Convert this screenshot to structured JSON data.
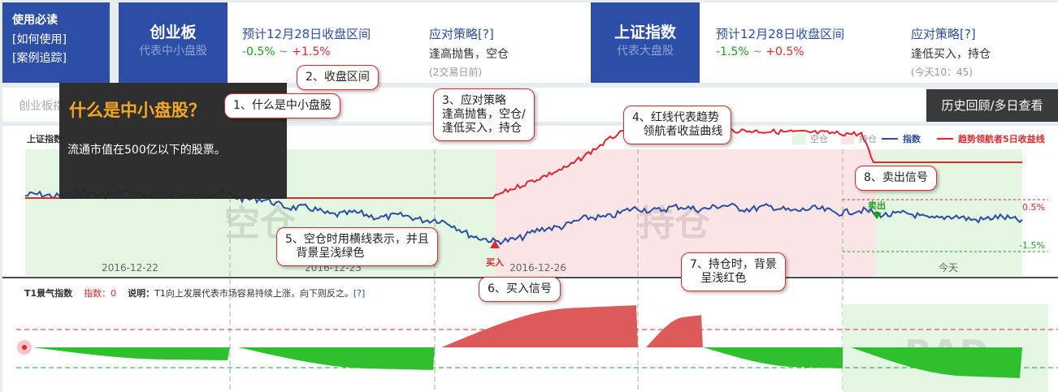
{
  "guide": {
    "title": "使用必读",
    "links": [
      "[如何使用]",
      "[案例追踪]"
    ]
  },
  "cyb": {
    "name": "创业板",
    "desc": "代表中小盘股",
    "range_title": "预计12月28日收盘区间",
    "low": "-0.5%",
    "sep": "~",
    "high": "+1.5%",
    "strategy_title": "应对策略[?]",
    "strategy": "逢高抛售，空仓",
    "time": "(2交易日前)"
  },
  "sh": {
    "name": "上证指数",
    "desc": "代表大盘股",
    "range_title": "预计12月28日收盘区间",
    "low": "-1.5%",
    "sep": "~",
    "high": "+0.5%",
    "strategy_title": "应对策略[?]",
    "strategy": "逢低买入，持仓",
    "time": "(今天10：45)"
  },
  "bar2": {
    "left_text": "创业板指",
    "history_button": "历史回顾/多日查看"
  },
  "tooltip": {
    "title": "什么是中小盘股？",
    "body": "流通市值在500亿以下的股票。"
  },
  "chart": {
    "title": "上证指数",
    "legend": {
      "empty": "空仓",
      "hold": "持仓",
      "index": "指数",
      "leader": "趋势领航者5日收益线"
    },
    "dates": [
      "2016-12-22",
      "2016-12-23",
      "2016-12-26",
      "今天"
    ],
    "zone_empty": "空仓",
    "zone_hold": "持仓",
    "buy": "买入",
    "sell": "卖出",
    "upper": "0.5%",
    "lower": "-1.5%",
    "colors": {
      "index": "#2b4ea0",
      "leader": "#e0282e",
      "empty_bg": "#e3f7e3",
      "hold_bg": "#fbe5e6"
    }
  },
  "t1": {
    "title": "T1景气指数",
    "value_label": "指数：0",
    "desc_label": "说明：",
    "desc": "T1向上发展代表市场容易持续上涨，向下则反之。",
    "help": "[?]",
    "watermark": "BAD"
  },
  "callouts": [
    "1、什么是中小盘股",
    "2、收盘区间",
    "3、应对策略\n逢高抛售，空仓/\n逢低买入，持仓",
    "4、红线代表趋势\n   领航者收益曲线",
    "5、空仓时用横线表示，并且\n   背景呈浅绿色",
    "6、买入信号",
    "7、持仓时，背景\n   呈浅红色",
    "8、卖出信号"
  ]
}
